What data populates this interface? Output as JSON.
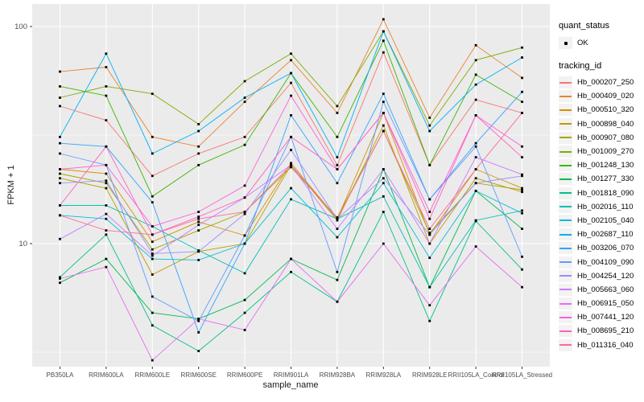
{
  "figure": {
    "background": "#FFFFFF",
    "panel_background": "#EBEBEB",
    "grid_color": "#FFFFFF",
    "axis_text_color": "#4D4D4D",
    "tick_color": "#333333",
    "point_color": "#000000",
    "legend_key_background": "#F2F2F2"
  },
  "chart_data": {
    "type": "line",
    "title": "",
    "xlabel": "sample_name",
    "ylabel": "FPKM + 1",
    "y_scale": "log10",
    "ylim": [
      2.7,
      125
    ],
    "y_ticks": [
      {
        "value": 100,
        "label": "100"
      },
      {
        "value": 10,
        "label": "10"
      }
    ],
    "y_minor_breaks": [
      31.62,
      3.162
    ],
    "grid": true,
    "legend_position": "right",
    "point_marker": "black-dot",
    "categories": [
      "PB350LA",
      "RRIM600LA",
      "RRIM600LE",
      "RRIM600SE",
      "RRIM600PE",
      "RRIM901LA",
      "RRIM928BA",
      "RRIM928LA",
      "RRIM928LE",
      "RRII105LA_Control",
      "RRII105LA_Stressed"
    ],
    "series": [
      {
        "name": "Hb_000207_250",
        "color": "#F8766D",
        "values": [
          43,
          37,
          20.5,
          26,
          31,
          55,
          23,
          76,
          23,
          46,
          40
        ]
      },
      {
        "name": "Hb_000409_020",
        "color": "#EA8331",
        "values": [
          62,
          65,
          31,
          28,
          45,
          70,
          40,
          108,
          38,
          82,
          58
        ]
      },
      {
        "name": "Hb_000510_320",
        "color": "#D89000",
        "values": [
          22,
          21,
          10.2,
          12.6,
          10.9,
          23.5,
          13,
          40,
          11,
          22,
          18
        ]
      },
      {
        "name": "Hb_000898_040",
        "color": "#C09B00",
        "values": [
          20,
          18,
          7.2,
          9.2,
          10,
          23,
          12.8,
          35,
          10,
          20,
          17.3
        ]
      },
      {
        "name": "Hb_000907_080",
        "color": "#A3A500",
        "values": [
          21,
          19,
          9.4,
          11.5,
          14,
          22.5,
          13.2,
          33,
          11.2,
          19,
          17.7
        ]
      },
      {
        "name": "Hb_001009_270",
        "color": "#7CAE00",
        "values": [
          47,
          53,
          49,
          35.5,
          56,
          75,
          43,
          95,
          35,
          70,
          80
        ]
      },
      {
        "name": "Hb_001248_130",
        "color": "#39B600",
        "values": [
          53,
          48,
          16.5,
          23,
          28.5,
          61,
          31,
          86,
          23,
          60,
          45
        ]
      },
      {
        "name": "Hb_001277_330",
        "color": "#00BB4E",
        "values": [
          6.6,
          8.5,
          4.8,
          4.5,
          5.5,
          8.5,
          6.8,
          22,
          6.3,
          17.5,
          11.7
        ]
      },
      {
        "name": "Hb_001818_090",
        "color": "#00C087",
        "values": [
          7,
          11,
          4.2,
          3.2,
          4.8,
          7.4,
          5.4,
          14,
          4.4,
          12.7,
          7.6
        ]
      },
      {
        "name": "Hb_002016_110",
        "color": "#00C0B2",
        "values": [
          15,
          15,
          12,
          9.3,
          7.3,
          16,
          13,
          16.5,
          6.3,
          12.8,
          14.2
        ]
      },
      {
        "name": "Hb_002105_040",
        "color": "#00BCD8",
        "values": [
          13.5,
          13,
          8.5,
          8.4,
          10,
          18,
          10.7,
          19,
          8.6,
          17.5,
          13.8
        ]
      },
      {
        "name": "Hb_002687_110",
        "color": "#00B0F6",
        "values": [
          31,
          75,
          26,
          33,
          47,
          61,
          25,
          95,
          33,
          54,
          72
        ]
      },
      {
        "name": "Hb_003206_070",
        "color": "#35A2FF",
        "values": [
          29,
          28,
          15.5,
          3.9,
          10,
          39,
          19,
          49,
          16,
          29,
          50
        ]
      },
      {
        "name": "Hb_004109_090",
        "color": "#619CFF",
        "values": [
          26,
          23,
          5.7,
          4.4,
          10.9,
          31,
          7.4,
          45,
          16,
          28,
          8.7
        ]
      },
      {
        "name": "Hb_004254_120",
        "color": "#9590FF",
        "values": [
          19,
          19.5,
          9,
          9.2,
          13.7,
          27,
          13,
          20,
          11,
          19,
          20.5
        ]
      },
      {
        "name": "Hb_005663_060",
        "color": "#C77CFF",
        "values": [
          10.5,
          13.7,
          8.8,
          12.2,
          16.3,
          23,
          11.7,
          22,
          10,
          25,
          20.8
        ]
      },
      {
        "name": "Hb_006915_050",
        "color": "#E76BF3",
        "values": [
          6.9,
          7.8,
          2.9,
          4.5,
          4.0,
          8.5,
          5.4,
          10,
          5.2,
          9.7,
          6.3
        ]
      },
      {
        "name": "Hb_007441_120",
        "color": "#FA62DB",
        "values": [
          22,
          23,
          12,
          14,
          18.5,
          48,
          22,
          40,
          14,
          39,
          28
        ]
      },
      {
        "name": "Hb_008695_210",
        "color": "#FF61C3",
        "values": [
          15,
          28,
          11,
          13.3,
          16.3,
          31,
          22,
          40,
          13,
          39,
          25
        ]
      },
      {
        "name": "Hb_011316_040",
        "color": "#FF6A98",
        "values": [
          13.5,
          11.5,
          11,
          13,
          14,
          23,
          13,
          33,
          11.7,
          22,
          40
        ]
      }
    ]
  },
  "legend": {
    "quant_status": {
      "title": "quant_status",
      "items": [
        {
          "label": "OK",
          "marker": "black-point"
        }
      ]
    },
    "tracking_id": {
      "title": "tracking_id"
    }
  }
}
